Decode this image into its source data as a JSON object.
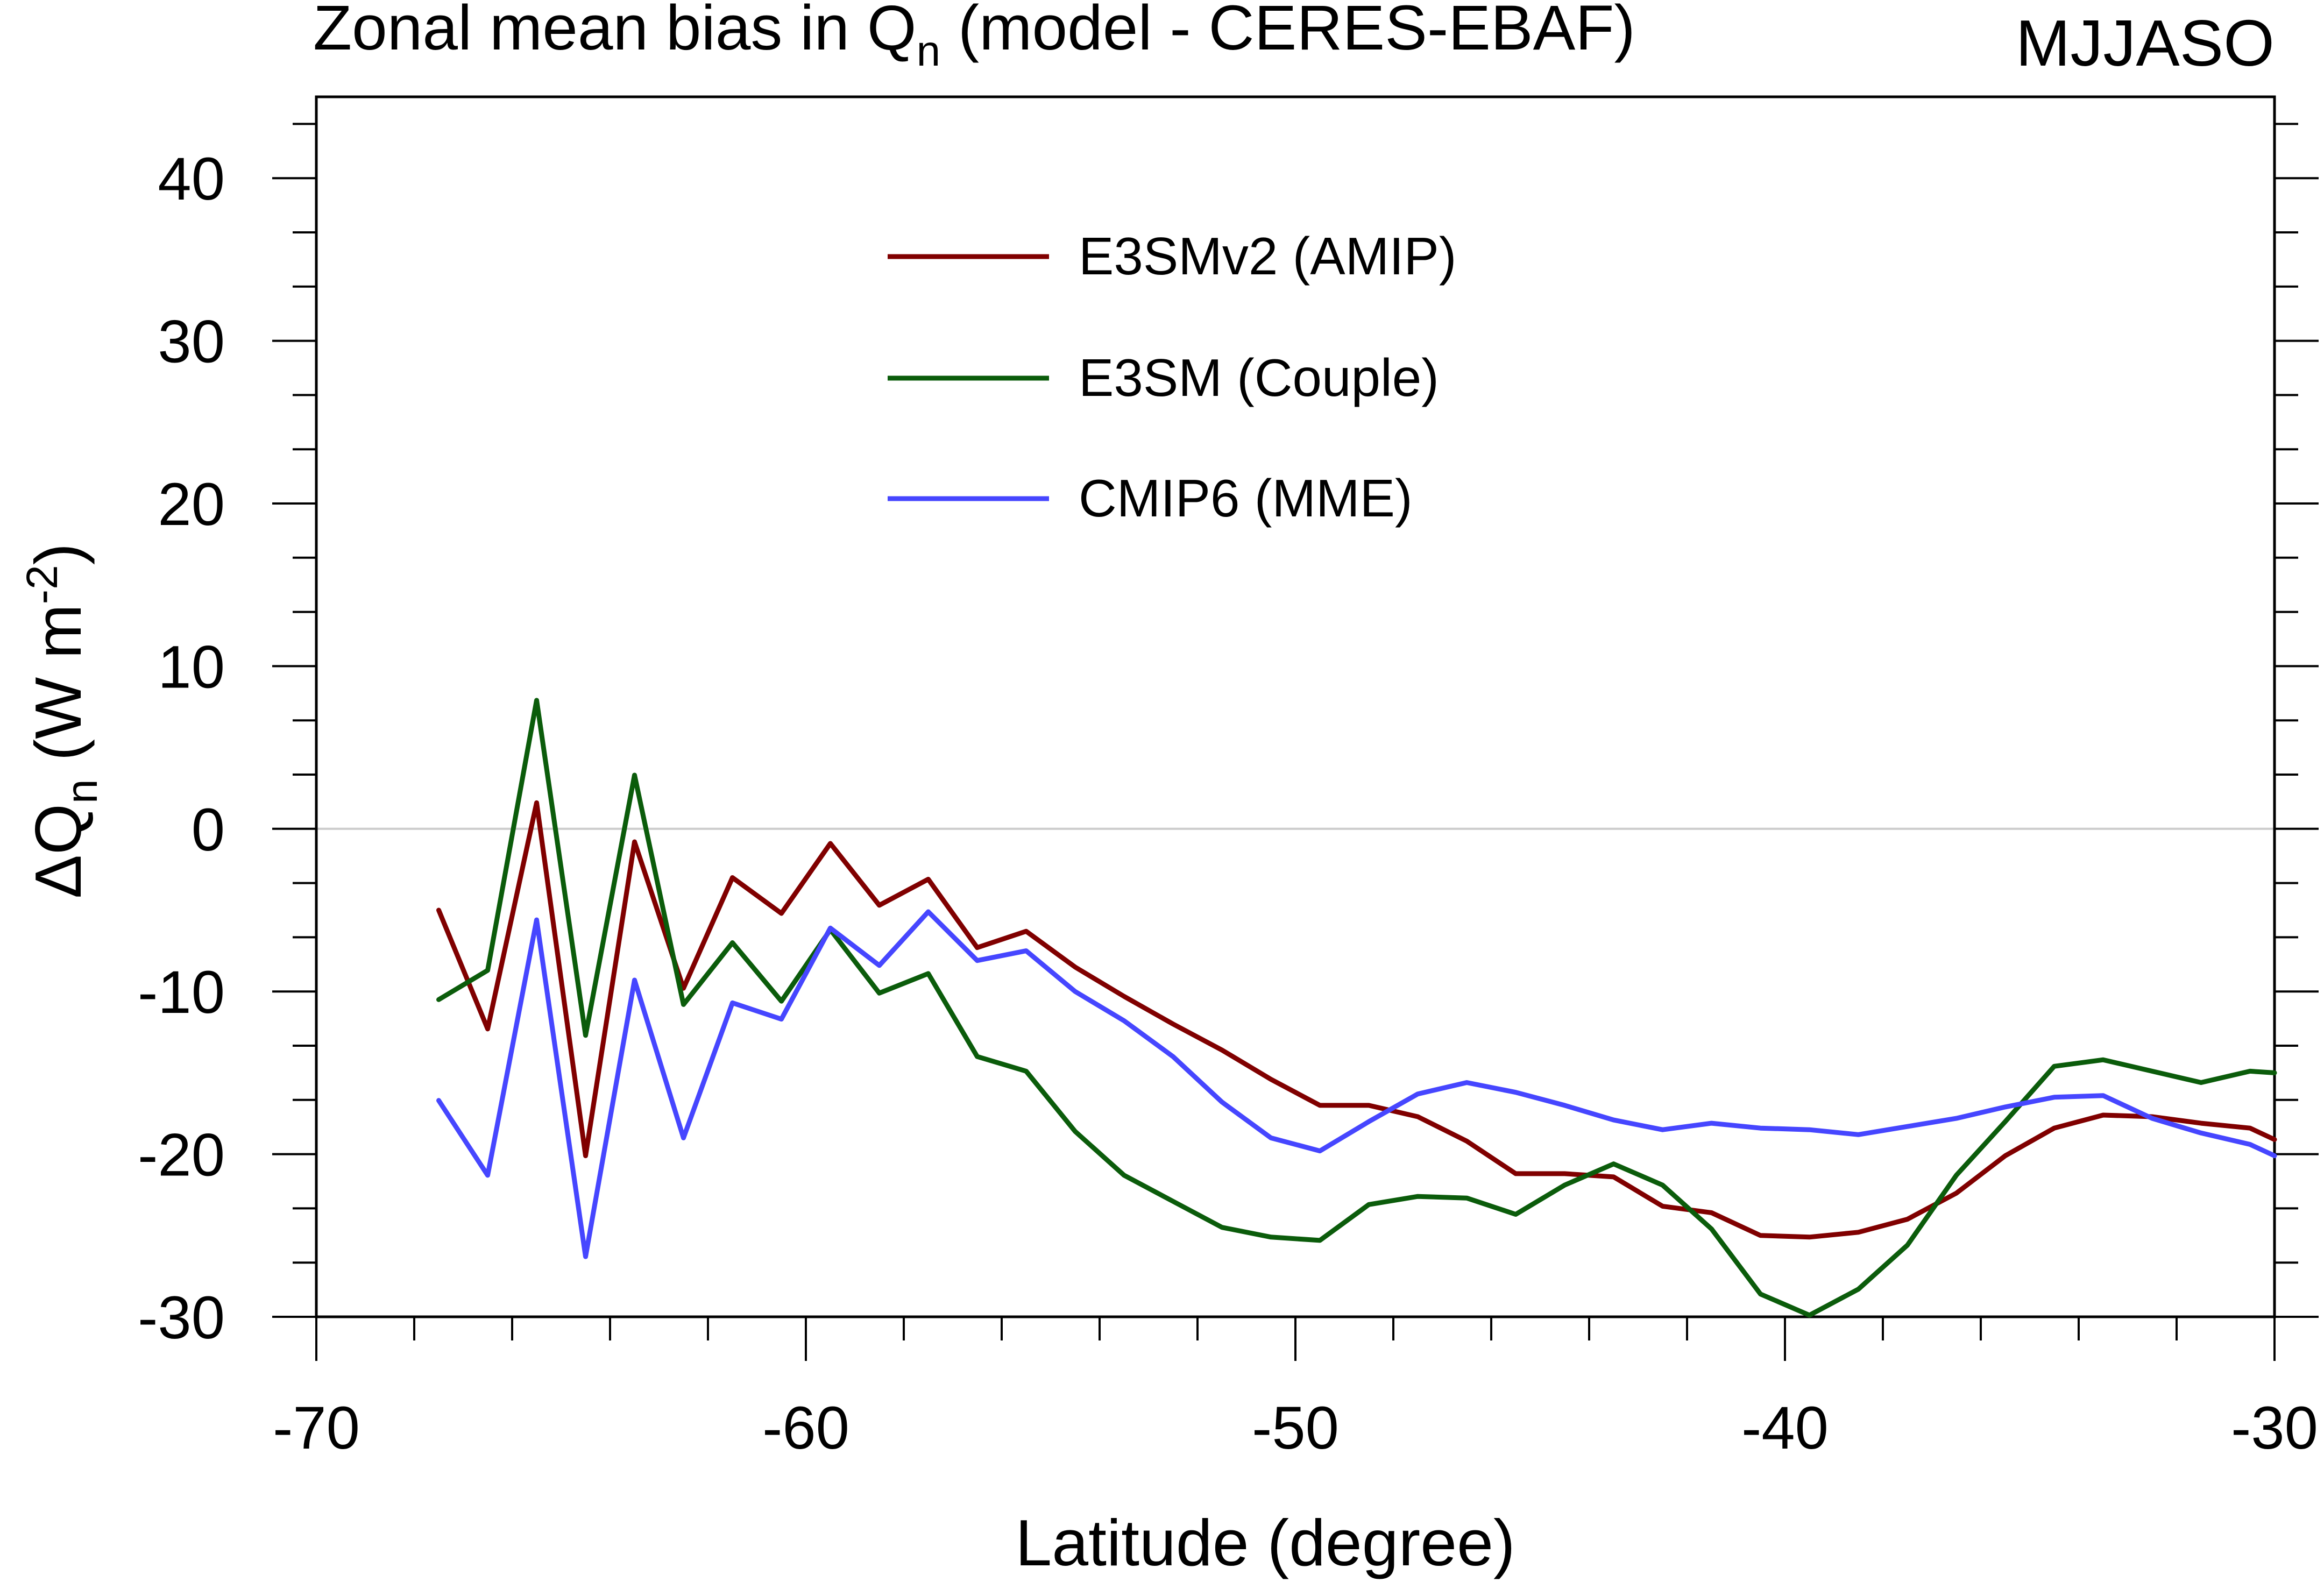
{
  "title": {
    "prefix": "Zonal mean bias in Q",
    "subscript": "n",
    "suffix": " (model - CERES-EBAF)"
  },
  "season": "MJJASO",
  "chart_data": {
    "type": "line",
    "title": "Zonal mean bias in Qn (model - CERES-EBAF)",
    "xlabel": "Latitude (degree)",
    "ylabel": {
      "prefix": "ΔQ",
      "subscript": "n",
      "unit_prefix": " (W m",
      "superscript": "-2",
      "unit_suffix": ")"
    },
    "xlim": [
      -70,
      -30
    ],
    "ylim": [
      -30,
      45
    ],
    "x_ticks": [
      -70,
      -60,
      -50,
      -40,
      -30
    ],
    "x_tick_labels": [
      "-70",
      "-60",
      "-50",
      "-40",
      "-30"
    ],
    "y_ticks": [
      -30,
      -20,
      -10,
      0,
      10,
      20,
      30,
      40
    ],
    "y_tick_labels": [
      "-30",
      "-20",
      "-10",
      "0",
      "10",
      "20",
      "30",
      "40"
    ],
    "zero_line": true,
    "legend_position": "top-center",
    "x": [
      -67.5,
      -66.5,
      -65.5,
      -64.5,
      -63.5,
      -62.5,
      -61.5,
      -60.5,
      -59.5,
      -58.5,
      -57.5,
      -56.5,
      -55.5,
      -54.5,
      -53.5,
      -52.5,
      -51.5,
      -50.5,
      -49.5,
      -48.5,
      -47.5,
      -46.5,
      -45.5,
      -44.5,
      -43.5,
      -42.5,
      -41.5,
      -40.5,
      -39.5,
      -38.5,
      -37.5,
      -36.5,
      -35.5,
      -34.5,
      -33.5,
      -32.5,
      -31.5,
      -30.5,
      -30.0
    ],
    "series": [
      {
        "name": "E3SMv2 (AMIP)",
        "color": "#800000",
        "values": [
          -5.0,
          -12.3,
          1.6,
          -20.1,
          -0.8,
          -9.8,
          -3.0,
          -5.2,
          -0.9,
          -4.7,
          -3.1,
          -7.3,
          -6.3,
          -8.5,
          -10.3,
          -12.0,
          -13.6,
          -15.4,
          -17.0,
          -17.0,
          -17.7,
          -19.2,
          -21.2,
          -21.2,
          -21.4,
          -23.2,
          -23.6,
          -25.0,
          -25.1,
          -24.8,
          -24.0,
          -22.4,
          -20.1,
          -18.4,
          -17.6,
          -17.7,
          -18.1,
          -18.4,
          -19.1
        ]
      },
      {
        "name": "E3SM (Couple)",
        "color": "#0b5c0b",
        "values": [
          -10.5,
          -8.7,
          7.9,
          -12.7,
          3.3,
          -10.8,
          -7.0,
          -10.6,
          -6.2,
          -10.1,
          -8.9,
          -14.0,
          -14.9,
          -18.6,
          -21.3,
          -22.9,
          -24.5,
          -25.1,
          -25.3,
          -23.1,
          -22.6,
          -22.7,
          -23.7,
          -21.9,
          -20.6,
          -21.9,
          -24.6,
          -28.6,
          -29.9,
          -28.3,
          -25.6,
          -21.3,
          -18.0,
          -14.6,
          -14.2,
          -14.9,
          -15.6,
          -14.9,
          -15.0
        ]
      },
      {
        "name": "CMIP6 (MME)",
        "color": "#4646ff",
        "values": [
          -16.7,
          -21.3,
          -5.6,
          -26.3,
          -9.3,
          -19.0,
          -10.7,
          -11.7,
          -6.1,
          -8.4,
          -5.1,
          -8.1,
          -7.5,
          -10.0,
          -11.8,
          -14.0,
          -16.8,
          -19.0,
          -19.8,
          -18.0,
          -16.3,
          -15.6,
          -16.2,
          -17.0,
          -17.9,
          -18.5,
          -18.1,
          -18.4,
          -18.5,
          -18.8,
          -18.3,
          -17.8,
          -17.1,
          -16.5,
          -16.4,
          -17.8,
          -18.7,
          -19.4,
          -20.1
        ]
      }
    ]
  }
}
